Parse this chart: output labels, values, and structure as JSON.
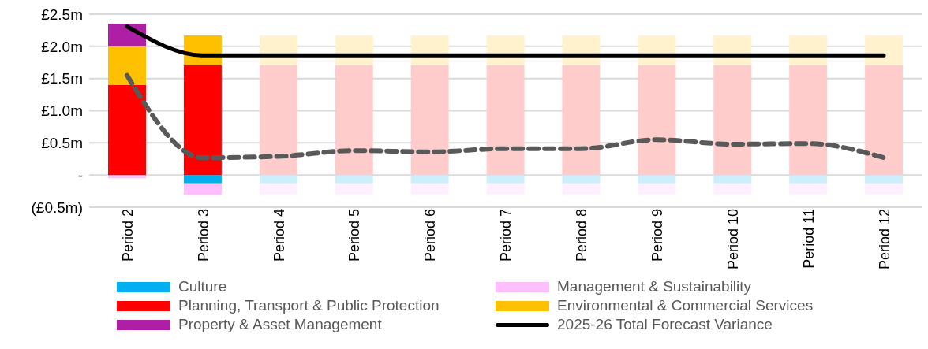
{
  "chart_data": {
    "type": "bar",
    "stacked": true,
    "categories": [
      "Period 2",
      "Period 3",
      "Period 4",
      "Period 5",
      "Period 6",
      "Period 7",
      "Period 8",
      "Period 9",
      "Period 10",
      "Period 11",
      "Period 12"
    ],
    "series": [
      {
        "name": "Culture",
        "color": "#00b0f0",
        "colors": [
          "#00b0f0",
          "#00b0f0",
          "#cdeefb",
          "#cdeefb",
          "#cdeefb",
          "#cdeefb",
          "#cdeefb",
          "#cdeefb",
          "#cdeefb",
          "#cdeefb",
          "#cdeefb"
        ],
        "values": [
          0,
          -0.13,
          -0.13,
          -0.13,
          -0.13,
          -0.13,
          -0.13,
          -0.13,
          -0.13,
          -0.13,
          -0.13
        ]
      },
      {
        "name": "Management & Sustainability",
        "color": "#ffbfff",
        "colors": [
          "#ffbfff",
          "#ffbfff",
          "#fff0ff",
          "#fff0ff",
          "#fff0ff",
          "#fff0ff",
          "#fff0ff",
          "#fff0ff",
          "#fff0ff",
          "#fff0ff",
          "#fff0ff"
        ],
        "values": [
          -0.05,
          -0.18,
          -0.18,
          -0.18,
          -0.18,
          -0.18,
          -0.18,
          -0.18,
          -0.18,
          -0.18,
          -0.18
        ]
      },
      {
        "name": "Planning, Transport & Public Protection",
        "color": "#ff0000",
        "colors": [
          "#ff0000",
          "#ff0000",
          "#ffcccc",
          "#ffcccc",
          "#ffcccc",
          "#ffcccc",
          "#ffcccc",
          "#ffcccc",
          "#ffcccc",
          "#ffcccc",
          "#ffcccc"
        ],
        "values": [
          1.4,
          1.71,
          1.71,
          1.71,
          1.71,
          1.71,
          1.71,
          1.71,
          1.71,
          1.71,
          1.71
        ]
      },
      {
        "name": "Environmental & Commercial Services",
        "color": "#ffc000",
        "colors": [
          "#ffc000",
          "#ffc000",
          "#fff2cc",
          "#fff2cc",
          "#fff2cc",
          "#fff2cc",
          "#fff2cc",
          "#fff2cc",
          "#fff2cc",
          "#fff2cc",
          "#fff2cc"
        ],
        "values": [
          0.6,
          0.46,
          0.46,
          0.46,
          0.46,
          0.46,
          0.46,
          0.46,
          0.46,
          0.46,
          0.46
        ]
      },
      {
        "name": "Property & Asset Management",
        "color": "#ae1fa6",
        "values": [
          0.35,
          0,
          0,
          0,
          0,
          0,
          0,
          0,
          0,
          0,
          0
        ]
      },
      {
        "type": "line",
        "name": "2025-26 Total Forecast Variance",
        "color": "#000000",
        "values": [
          2.31,
          1.86,
          1.86,
          1.86,
          1.86,
          1.86,
          1.86,
          1.86,
          1.86,
          1.86,
          1.86
        ]
      },
      {
        "type": "line",
        "color": "#595959",
        "line_style": "dashed",
        "values": [
          1.55,
          0.27,
          0.29,
          0.38,
          0.36,
          0.41,
          0.41,
          0.55,
          0.48,
          0.49,
          0.27
        ]
      }
    ],
    "ylim": [
      -0.5,
      2.5
    ],
    "yticks": [
      {
        "value": -0.5,
        "label": "(£0.5m)"
      },
      {
        "value": 0,
        "label": "-"
      },
      {
        "value": 0.5,
        "label": "£0.5m"
      },
      {
        "value": 1,
        "label": "£1.0m"
      },
      {
        "value": 1.5,
        "label": "£1.5m"
      },
      {
        "value": 2,
        "label": "£2.0m"
      },
      {
        "value": 2.5,
        "label": "£2.5m"
      }
    ],
    "grid": "y",
    "legend": "bottom",
    "marker": "none"
  }
}
